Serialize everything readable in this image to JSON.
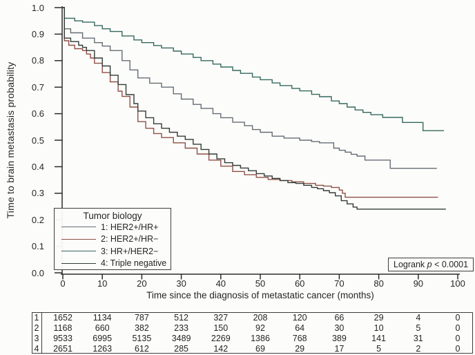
{
  "figure": {
    "background": "#fcfcfa",
    "axis_color": "#2b2b2b",
    "y_axis": {
      "label": "Time to brain metastasis probability",
      "ticks": [
        "1.0",
        "0.9",
        "0.8",
        "0.7",
        "0.6",
        "0.5",
        "0.4",
        "0.3",
        "0.2",
        "0.1",
        "0.0"
      ]
    },
    "x_axis": {
      "label": "Time since the diagnosis of metastatic cancer (months)",
      "ticks": [
        "0",
        "10",
        "20",
        "30",
        "40",
        "50",
        "60",
        "70",
        "80",
        "90",
        "100"
      ]
    },
    "legend": {
      "title": "Tumor biology",
      "items": [
        {
          "label": "1: HER2+/HR+",
          "color": "#646c75"
        },
        {
          "label": "2: HER2+/HR−",
          "color": "#8e4f46"
        },
        {
          "label": "3: HR+/HER2−",
          "color": "#34685e"
        },
        {
          "label": "4: Triple negative",
          "color": "#323b36"
        }
      ]
    },
    "logrank": {
      "prefix": "Logrank ",
      "italic": "p",
      "suffix": " < 0.0001"
    }
  },
  "chart_data": {
    "type": "line",
    "subtype": "kaplan-meier-step",
    "title": "",
    "xlabel": "Time since the diagnosis of metastatic cancer (months)",
    "ylabel": "Time to brain metastasis probability",
    "xlim": [
      0,
      100
    ],
    "ylim": [
      0.0,
      1.0
    ],
    "x_ticks": [
      0,
      10,
      20,
      30,
      40,
      50,
      60,
      70,
      80,
      90,
      100
    ],
    "y_ticks": [
      0.0,
      0.1,
      0.2,
      0.3,
      0.4,
      0.5,
      0.6,
      0.7,
      0.8,
      0.9,
      1.0
    ],
    "grid": false,
    "legend_position": "lower-left",
    "annotation": "Logrank p < 0.0001",
    "series": [
      {
        "name": "1: HER2+/HR+",
        "color": "#646c75",
        "points": [
          [
            0,
            1.0
          ],
          [
            0.4,
            0.92
          ],
          [
            2,
            0.905
          ],
          [
            5,
            0.885
          ],
          [
            8,
            0.868
          ],
          [
            10,
            0.855
          ],
          [
            12,
            0.838
          ],
          [
            15,
            0.8
          ],
          [
            17,
            0.765
          ],
          [
            19,
            0.735
          ],
          [
            22,
            0.715
          ],
          [
            25,
            0.7
          ],
          [
            28,
            0.675
          ],
          [
            30,
            0.655
          ],
          [
            33,
            0.635
          ],
          [
            35,
            0.62
          ],
          [
            38,
            0.6
          ],
          [
            40,
            0.585
          ],
          [
            43,
            0.568
          ],
          [
            46,
            0.555
          ],
          [
            48,
            0.54
          ],
          [
            50,
            0.53
          ],
          [
            53,
            0.515
          ],
          [
            56,
            0.508
          ],
          [
            60,
            0.5
          ],
          [
            63,
            0.495
          ],
          [
            65,
            0.49
          ],
          [
            68.6,
            0.47
          ],
          [
            70,
            0.462
          ],
          [
            71.5,
            0.455
          ],
          [
            73,
            0.447
          ],
          [
            74.5,
            0.44
          ],
          [
            76.5,
            0.425
          ],
          [
            82.9,
            0.394
          ],
          [
            94.7,
            0.394
          ]
        ]
      },
      {
        "name": "2: HER2+/HR−",
        "color": "#8e4f46",
        "points": [
          [
            0,
            1.0
          ],
          [
            0.4,
            0.875
          ],
          [
            1.5,
            0.858
          ],
          [
            3,
            0.845
          ],
          [
            5,
            0.838
          ],
          [
            6,
            0.825
          ],
          [
            7,
            0.81
          ],
          [
            8,
            0.79
          ],
          [
            10,
            0.755
          ],
          [
            12,
            0.72
          ],
          [
            14,
            0.685
          ],
          [
            15,
            0.665
          ],
          [
            17,
            0.625
          ],
          [
            19,
            0.57
          ],
          [
            21,
            0.545
          ],
          [
            23,
            0.525
          ],
          [
            25,
            0.51
          ],
          [
            28,
            0.49
          ],
          [
            31,
            0.47
          ],
          [
            34,
            0.448
          ],
          [
            37,
            0.425
          ],
          [
            40,
            0.402
          ],
          [
            43,
            0.382
          ],
          [
            46,
            0.37
          ],
          [
            49,
            0.36
          ],
          [
            52,
            0.352
          ],
          [
            55,
            0.348
          ],
          [
            58,
            0.343
          ],
          [
            61,
            0.337
          ],
          [
            64,
            0.33
          ],
          [
            66,
            0.327
          ],
          [
            68,
            0.322
          ],
          [
            70,
            0.312
          ],
          [
            70.8,
            0.3
          ],
          [
            71.5,
            0.285
          ],
          [
            95,
            0.285
          ]
        ]
      },
      {
        "name": "3: HR+/HER2−",
        "color": "#34685e",
        "points": [
          [
            0,
            1.0
          ],
          [
            0.4,
            0.96
          ],
          [
            3,
            0.95
          ],
          [
            5,
            0.945
          ],
          [
            8,
            0.932
          ],
          [
            10,
            0.92
          ],
          [
            12,
            0.91
          ],
          [
            15,
            0.893
          ],
          [
            18,
            0.878
          ],
          [
            20,
            0.868
          ],
          [
            23,
            0.857
          ],
          [
            25,
            0.848
          ],
          [
            28,
            0.836
          ],
          [
            30,
            0.825
          ],
          [
            33,
            0.812
          ],
          [
            35,
            0.8
          ],
          [
            38,
            0.787
          ],
          [
            40,
            0.776
          ],
          [
            43,
            0.763
          ],
          [
            45,
            0.752
          ],
          [
            48,
            0.738
          ],
          [
            50,
            0.728
          ],
          [
            53,
            0.716
          ],
          [
            55,
            0.706
          ],
          [
            58,
            0.695
          ],
          [
            60,
            0.686
          ],
          [
            63,
            0.673
          ],
          [
            65,
            0.664
          ],
          [
            68,
            0.648
          ],
          [
            70,
            0.638
          ],
          [
            72,
            0.625
          ],
          [
            74,
            0.614
          ],
          [
            76,
            0.605
          ],
          [
            78,
            0.596
          ],
          [
            81,
            0.586
          ],
          [
            86,
            0.567
          ],
          [
            91.2,
            0.536
          ],
          [
            96.5,
            0.536
          ]
        ]
      },
      {
        "name": "4: Triple negative",
        "color": "#323b36",
        "points": [
          [
            0,
            1.0
          ],
          [
            0.4,
            0.885
          ],
          [
            2,
            0.872
          ],
          [
            4,
            0.858
          ],
          [
            5,
            0.85
          ],
          [
            6,
            0.838
          ],
          [
            8,
            0.81
          ],
          [
            10,
            0.78
          ],
          [
            12,
            0.745
          ],
          [
            14,
            0.71
          ],
          [
            16,
            0.672
          ],
          [
            18,
            0.638
          ],
          [
            19,
            0.61
          ],
          [
            21,
            0.585
          ],
          [
            23,
            0.562
          ],
          [
            25,
            0.545
          ],
          [
            27,
            0.53
          ],
          [
            29,
            0.515
          ],
          [
            31,
            0.503
          ],
          [
            33,
            0.485
          ],
          [
            35,
            0.465
          ],
          [
            37,
            0.448
          ],
          [
            39,
            0.43
          ],
          [
            41,
            0.415
          ],
          [
            43,
            0.405
          ],
          [
            45,
            0.395
          ],
          [
            47,
            0.385
          ],
          [
            49,
            0.374
          ],
          [
            51,
            0.365
          ],
          [
            53,
            0.356
          ],
          [
            55,
            0.348
          ],
          [
            57,
            0.34
          ],
          [
            59,
            0.337
          ],
          [
            61,
            0.33
          ],
          [
            63,
            0.322
          ],
          [
            64.5,
            0.317
          ],
          [
            66,
            0.31
          ],
          [
            67.5,
            0.302
          ],
          [
            69,
            0.29
          ],
          [
            70.5,
            0.272
          ],
          [
            72,
            0.26
          ],
          [
            73.5,
            0.248
          ],
          [
            74.5,
            0.24
          ],
          [
            97,
            0.24
          ]
        ]
      }
    ],
    "number_at_risk": {
      "x": [
        0,
        10,
        20,
        30,
        40,
        50,
        60,
        70,
        80,
        90,
        100
      ],
      "rows": [
        {
          "label": "1",
          "counts": [
            1652,
            1134,
            787,
            512,
            327,
            208,
            120,
            66,
            29,
            4,
            0
          ]
        },
        {
          "label": "2",
          "counts": [
            1168,
            660,
            382,
            233,
            150,
            92,
            64,
            30,
            10,
            5,
            0
          ]
        },
        {
          "label": "3",
          "counts": [
            9533,
            6995,
            5135,
            3489,
            2269,
            1386,
            768,
            389,
            141,
            31,
            0
          ]
        },
        {
          "label": "4",
          "counts": [
            2651,
            1263,
            612,
            285,
            142,
            69,
            29,
            17,
            5,
            2,
            0
          ]
        }
      ]
    }
  }
}
